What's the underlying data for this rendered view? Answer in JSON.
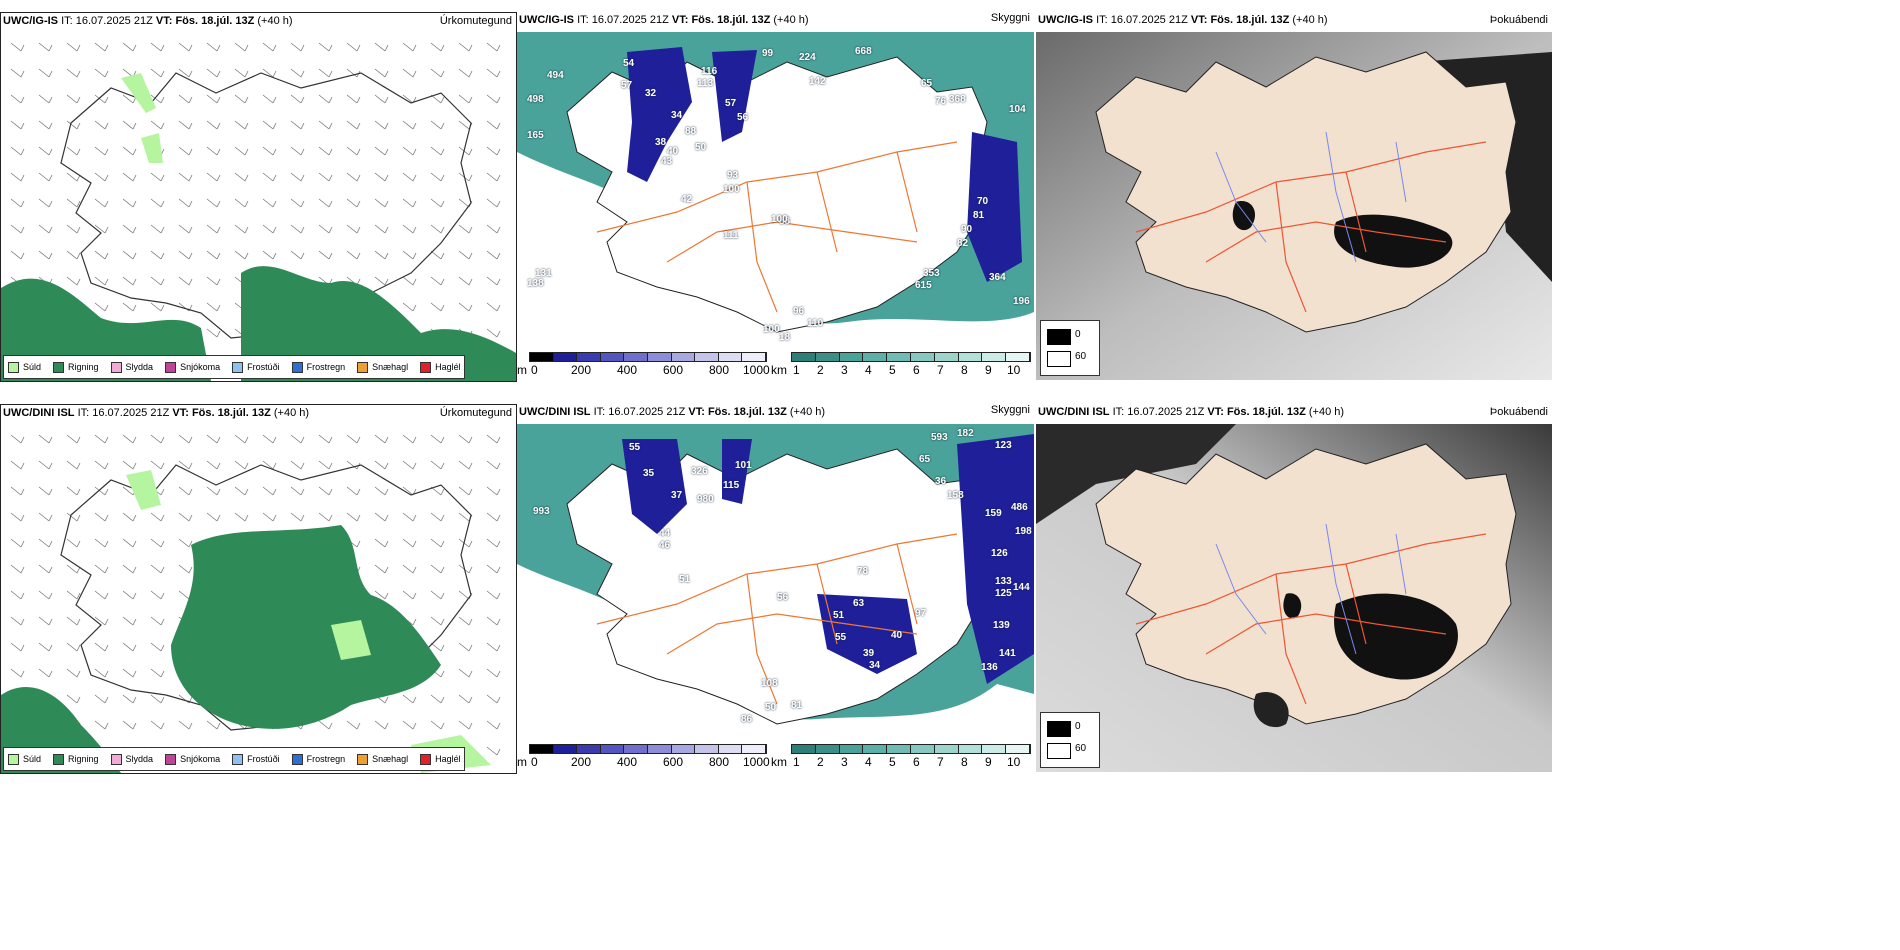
{
  "colors": {
    "precip_drizzle": "#b6f5a0",
    "precip_rain": "#2e8b57",
    "precip_sleet": "#f2aad6",
    "precip_snow": "#c0449a",
    "precip_freezing_drizzle": "#8ec0f0",
    "precip_freezing_rain": "#2f6fd0",
    "precip_graupel": "#f0a030",
    "precip_hail": "#e0202a",
    "ceiling_blue": "#1f1f9a",
    "visibility_teal": "#4aa39a",
    "land_beige": "#f3e1d0",
    "roads": "#ee7733",
    "rivers": "#7788ee"
  },
  "precip_legend": [
    {
      "label": "Súld",
      "color_key": "precip_drizzle"
    },
    {
      "label": "Rigning",
      "color_key": "precip_rain"
    },
    {
      "label": "Slydda",
      "color_key": "precip_sleet"
    },
    {
      "label": "Snjókoma",
      "color_key": "precip_snow"
    },
    {
      "label": "Frostúði",
      "color_key": "precip_freezing_drizzle"
    },
    {
      "label": "Frostregn",
      "color_key": "precip_freezing_rain"
    },
    {
      "label": "Snæhagl",
      "color_key": "precip_graupel"
    },
    {
      "label": "Haglél",
      "color_key": "precip_hail"
    }
  ],
  "ceiling_bar": {
    "unit": "m",
    "ticks": [
      "0",
      "200",
      "400",
      "600",
      "800",
      "1000"
    ]
  },
  "visibility_bar": {
    "unit": "km",
    "ticks": [
      "1",
      "2",
      "3",
      "4",
      "5",
      "6",
      "7",
      "8",
      "9",
      "10"
    ]
  },
  "fog_legend": {
    "black_label": "0",
    "white_label": "60"
  },
  "rows": [
    {
      "model": "UWC/IG-IS",
      "it_label": "IT:",
      "it_value": "16.07.2025 21Z",
      "vt_label": "VT:",
      "vt_value": "Fös. 18.júl. 13Z",
      "lead": "(+40 h)",
      "panel_titles": [
        "Úrkomutegund",
        "Skyggni",
        "Þokuábendi"
      ],
      "ceiling_numbers": [
        "54",
        "494",
        "57",
        "32",
        "116",
        "113",
        "99",
        "224",
        "142",
        "668",
        "65",
        "498",
        "34",
        "165",
        "88",
        "38",
        "40",
        "43",
        "50",
        "57",
        "56",
        "76",
        "368",
        "104",
        "42",
        "93",
        "100",
        "58",
        "70",
        "81",
        "111",
        "100",
        "90",
        "82",
        "131",
        "138",
        "353",
        "615",
        "364",
        "196",
        "96",
        "110",
        "100",
        "18"
      ]
    },
    {
      "model": "UWC/DINI ISL",
      "it_label": "IT:",
      "it_value": "16.07.2025 21Z",
      "vt_label": "VT:",
      "vt_value": "Fös. 18.júl. 13Z",
      "lead": "(+40 h)",
      "panel_titles": [
        "Úrkomutegund",
        "Skyggni",
        "Þokuábendi"
      ],
      "ceiling_numbers": [
        "55",
        "35",
        "326",
        "101",
        "593",
        "182",
        "123",
        "65",
        "37",
        "980",
        "115",
        "993",
        "36",
        "158",
        "486",
        "159",
        "44",
        "46",
        "198",
        "51",
        "126",
        "56",
        "133",
        "144",
        "125",
        "78",
        "51",
        "63",
        "97",
        "55",
        "40",
        "39",
        "34",
        "139",
        "141",
        "136",
        "108",
        "50",
        "86",
        "81"
      ]
    }
  ]
}
